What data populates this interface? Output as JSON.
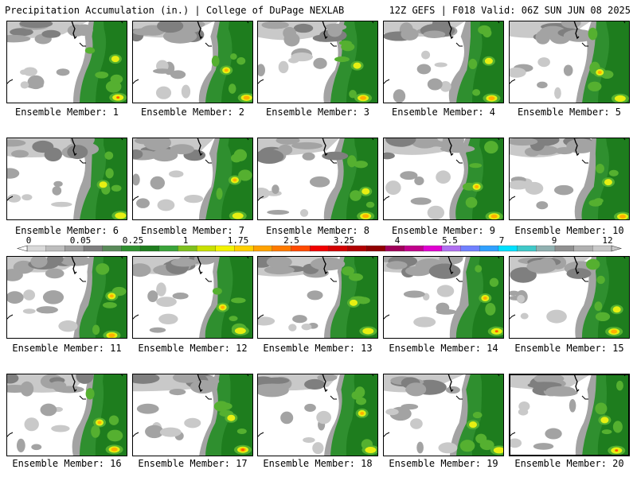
{
  "header": {
    "left": "Precipitation Accumulation (in.) | College of DuPage NEXLAB",
    "right": "12Z GEFS | F018 Valid: 06Z SUN JUN 08 2025"
  },
  "legend": {
    "ticks": [
      "0",
      "0.05",
      "0.25",
      "1",
      "1.75",
      "2.5",
      "3.25",
      "4",
      "5.5",
      "7",
      "9",
      "12"
    ],
    "colors": [
      "#d9d9d9",
      "#bdbdbd",
      "#a0a0a0",
      "#7e7e7e",
      "#5a8a5a",
      "#2f8f2f",
      "#1e7d1e",
      "#3aa33a",
      "#7ec01e",
      "#c8e000",
      "#f2f200",
      "#ffd000",
      "#ffa200",
      "#ff7a00",
      "#ff4a00",
      "#f00000",
      "#d20000",
      "#b00000",
      "#900000",
      "#a0005a",
      "#c0008a",
      "#e000d0",
      "#b070f0",
      "#7080ff",
      "#30a0ff",
      "#00e0ff",
      "#40c8c8",
      "#90b0b0",
      "#909090",
      "#b0b0b0",
      "#c8c8c8"
    ]
  },
  "panels": [
    {
      "label": "Ensemble Member: 1"
    },
    {
      "label": "Ensemble Member: 2"
    },
    {
      "label": "Ensemble Member: 3"
    },
    {
      "label": "Ensemble Member: 4"
    },
    {
      "label": "Ensemble Member: 5"
    },
    {
      "label": "Ensemble Member: 6"
    },
    {
      "label": "Ensemble Member: 7"
    },
    {
      "label": "Ensemble Member: 8"
    },
    {
      "label": "Ensemble Member: 9"
    },
    {
      "label": "Ensemble Member: 10"
    },
    {
      "label": "Ensemble Member: 11"
    },
    {
      "label": "Ensemble Member: 12"
    },
    {
      "label": "Ensemble Member: 13"
    },
    {
      "label": "Ensemble Member: 14"
    },
    {
      "label": "Ensemble Member: 15"
    },
    {
      "label": "Ensemble Member: 16"
    },
    {
      "label": "Ensemble Member: 17"
    },
    {
      "label": "Ensemble Member: 18"
    },
    {
      "label": "Ensemble Member: 19"
    },
    {
      "label": "Ensemble Member: 20",
      "selected": true
    }
  ]
}
